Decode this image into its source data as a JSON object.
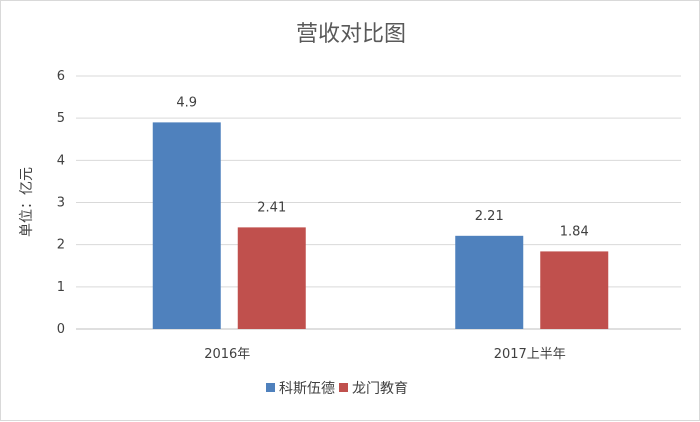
{
  "chart_data": {
    "type": "bar",
    "title": "营收对比图",
    "ylabel": "单位：亿元",
    "xlabel": "",
    "categories": [
      "2016年",
      "2017上半年"
    ],
    "series": [
      {
        "name": "科斯伍德",
        "color": "#4f81bd",
        "values": [
          4.9,
          2.21
        ]
      },
      {
        "name": "龙门教育",
        "color": "#c0504d",
        "values": [
          2.41,
          1.84
        ]
      }
    ],
    "ylim": [
      0,
      6
    ],
    "yticks": [
      0,
      1,
      2,
      3,
      4,
      5,
      6
    ],
    "grid": true,
    "legend": "bottom",
    "data_labels": [
      "4.9",
      "2.21",
      "2.41",
      "1.84"
    ]
  }
}
